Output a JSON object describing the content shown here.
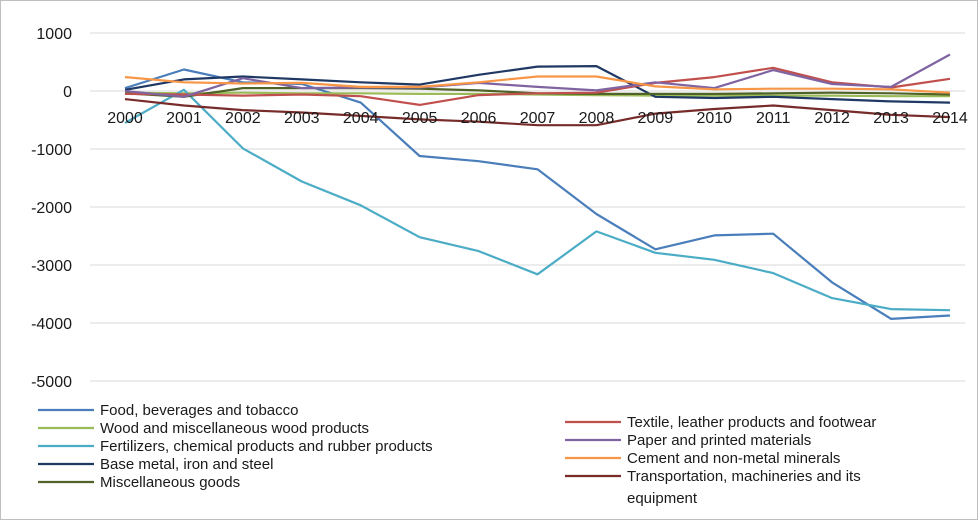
{
  "chart_data": {
    "type": "line",
    "x": [
      "2000",
      "2001",
      "2002",
      "2003",
      "2004",
      "2005",
      "2006",
      "2007",
      "2008",
      "2009",
      "2010",
      "2011",
      "2012",
      "2013",
      "2014"
    ],
    "ylim": [
      -5000,
      1000
    ],
    "yticks": [
      1000,
      0,
      -1000,
      -2000,
      -3000,
      -4000,
      -5000
    ],
    "ytick_labels": [
      "1000",
      "0",
      "-1000",
      "-2000",
      "-3000",
      "-4000",
      "-5000"
    ],
    "grid": "horizontal",
    "legend_position": "bottom",
    "series": [
      {
        "name": "Food, beverages and tobacco",
        "color": "#4a7ebb",
        "values": [
          50,
          370,
          150,
          120,
          -200,
          -1120,
          -1210,
          -1350,
          -2120,
          -2730,
          -2490,
          -2460,
          -3300,
          -3930,
          -3870
        ]
      },
      {
        "name": "Wood and miscellaneous wood products",
        "color": "#9bbb59",
        "values": [
          -30,
          -40,
          -30,
          -40,
          -40,
          -50,
          -50,
          -60,
          -70,
          -80,
          -80,
          -80,
          -80,
          -90,
          -90
        ]
      },
      {
        "name": "Fertilizers, chemical products and rubber products",
        "color": "#4bacc6",
        "values": [
          -550,
          20,
          -990,
          -1560,
          -1970,
          -2520,
          -2760,
          -3160,
          -2420,
          -2790,
          -2910,
          -3140,
          -3570,
          -3760,
          -3780
        ]
      },
      {
        "name": "Base metal, iron and steel",
        "color": "#1f3864",
        "values": [
          20,
          200,
          250,
          200,
          150,
          110,
          280,
          420,
          430,
          -100,
          -120,
          -100,
          -140,
          -180,
          -200
        ]
      },
      {
        "name": "Miscellaneous goods",
        "color": "#4f6228",
        "values": [
          -40,
          -100,
          50,
          50,
          50,
          40,
          10,
          -40,
          -50,
          -50,
          -50,
          -40,
          -30,
          -40,
          -60
        ]
      },
      {
        "name": "Textile, leather products and footwear",
        "color": "#c0504d",
        "values": [
          -50,
          -60,
          -80,
          -60,
          -90,
          -240,
          -70,
          -40,
          -30,
          140,
          240,
          400,
          150,
          60,
          210
        ]
      },
      {
        "name": "Paper and printed materials",
        "color": "#8064a2",
        "values": [
          0,
          -100,
          220,
          50,
          60,
          60,
          140,
          70,
          10,
          150,
          50,
          360,
          120,
          70,
          630
        ]
      },
      {
        "name": "Cement and non-metal minerals",
        "color": "#f79646",
        "values": [
          240,
          150,
          130,
          140,
          70,
          70,
          150,
          250,
          250,
          80,
          30,
          40,
          40,
          30,
          -30
        ]
      },
      {
        "name": "Transportation, machineries and its equipment",
        "color": "#772c2a",
        "values": [
          -140,
          -250,
          -330,
          -370,
          -430,
          -490,
          -530,
          -590,
          -590,
          -390,
          -310,
          -250,
          -330,
          -410,
          -450
        ]
      }
    ]
  }
}
